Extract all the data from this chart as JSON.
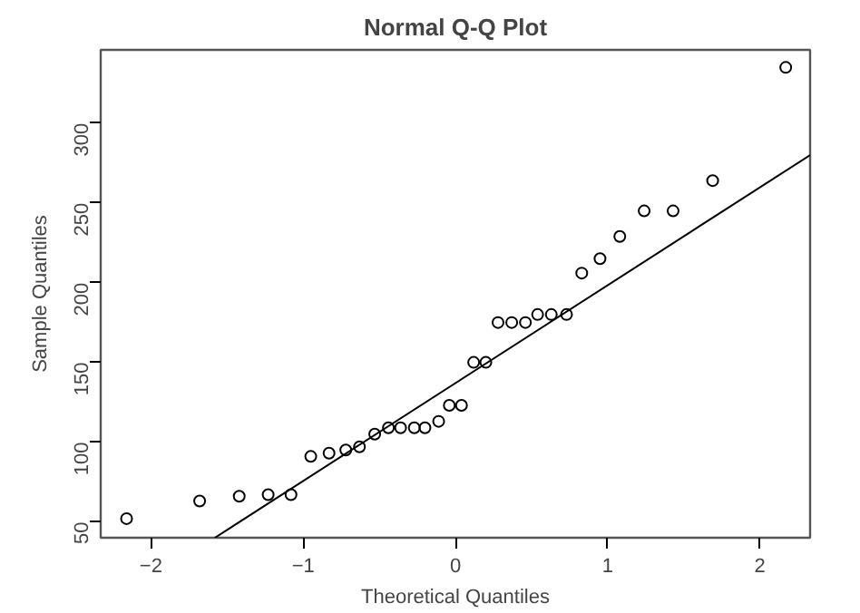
{
  "chart_data": {
    "type": "scatter",
    "title": "Normal Q-Q Plot",
    "xlabel": "Theoretical Quantiles",
    "ylabel": "Sample Quantiles",
    "xlim": [
      -2.33,
      2.33
    ],
    "ylim": [
      40,
      346
    ],
    "xticks": [
      -2,
      -1,
      0,
      1,
      2
    ],
    "yticks": [
      50,
      100,
      150,
      200,
      250,
      300
    ],
    "grid": false,
    "series": [
      {
        "marker": "circle",
        "color": "#000000",
        "x": [
          -2.16,
          -1.68,
          -1.42,
          -1.23,
          -1.08,
          -0.95,
          -0.83,
          -0.72,
          -0.63,
          -0.53,
          -0.44,
          -0.36,
          -0.27,
          -0.2,
          -0.11,
          -0.04,
          0.04,
          0.12,
          0.2,
          0.28,
          0.37,
          0.46,
          0.54,
          0.63,
          0.73,
          0.83,
          0.95,
          1.08,
          1.24,
          1.43,
          1.69,
          2.17
        ],
        "values": [
          52,
          63,
          66,
          67,
          67,
          91,
          93,
          95,
          97,
          105,
          109,
          109,
          109,
          109,
          113,
          123,
          123,
          150,
          150,
          175,
          175,
          175,
          180,
          180,
          180,
          206,
          215,
          229,
          245,
          245,
          264,
          335
        ]
      },
      {
        "type": "line",
        "color": "#000000",
        "x": [
          -1.58,
          2.33
        ],
        "values": [
          40,
          280
        ],
        "line_style": "solid",
        "marker": "none"
      }
    ]
  }
}
